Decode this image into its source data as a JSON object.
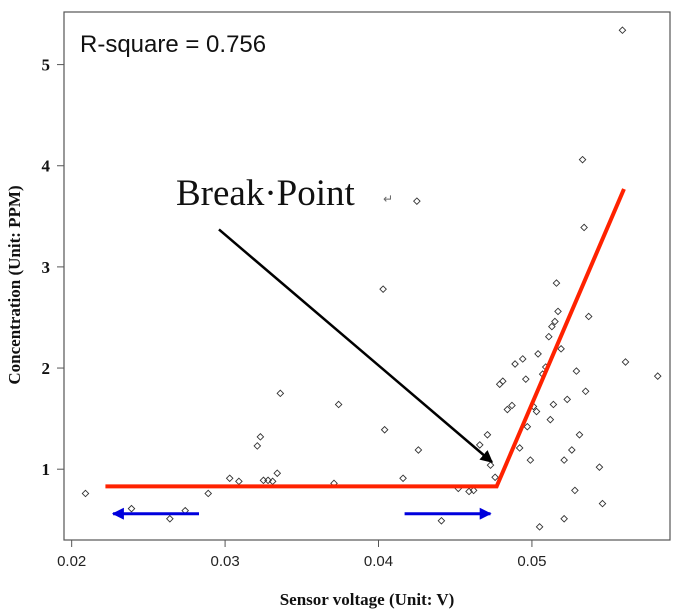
{
  "chart_data": {
    "type": "scatter",
    "title": "",
    "xlabel": "Sensor voltage (Unit: V)",
    "ylabel": "Concentration (Unit: PPM)",
    "xlim": [
      0.0195,
      0.059
    ],
    "ylim": [
      0.3,
      5.52
    ],
    "x_ticks": [
      {
        "value": 0.02,
        "label": "0.02"
      },
      {
        "value": 0.03,
        "label": "0.03"
      },
      {
        "value": 0.04,
        "label": "0.04"
      },
      {
        "value": 0.05,
        "label": "0.05"
      }
    ],
    "y_ticks": [
      {
        "value": 1,
        "label": "1"
      },
      {
        "value": 2,
        "label": "2"
      },
      {
        "value": 3,
        "label": "3"
      },
      {
        "value": 4,
        "label": "4"
      },
      {
        "value": 5,
        "label": "5"
      }
    ],
    "grid": false,
    "points": [
      [
        0.0209,
        0.76
      ],
      [
        0.0239,
        0.61
      ],
      [
        0.0264,
        0.51
      ],
      [
        0.0274,
        0.59
      ],
      [
        0.0289,
        0.76
      ],
      [
        0.0303,
        0.91
      ],
      [
        0.0309,
        0.88
      ],
      [
        0.0321,
        1.23
      ],
      [
        0.0323,
        1.32
      ],
      [
        0.0325,
        0.89
      ],
      [
        0.0328,
        0.89
      ],
      [
        0.0331,
        0.88
      ],
      [
        0.0334,
        0.96
      ],
      [
        0.0336,
        1.75
      ],
      [
        0.0371,
        0.86
      ],
      [
        0.0374,
        1.64
      ],
      [
        0.0403,
        2.78
      ],
      [
        0.0404,
        1.39
      ],
      [
        0.0425,
        3.65
      ],
      [
        0.0426,
        1.19
      ],
      [
        0.0416,
        0.91
      ],
      [
        0.0441,
        0.49
      ],
      [
        0.0452,
        0.81
      ],
      [
        0.0459,
        0.78
      ],
      [
        0.0462,
        0.79
      ],
      [
        0.0466,
        1.24
      ],
      [
        0.0471,
        1.34
      ],
      [
        0.0473,
        1.04
      ],
      [
        0.0476,
        0.92
      ],
      [
        0.0479,
        1.84
      ],
      [
        0.0481,
        1.87
      ],
      [
        0.0484,
        1.59
      ],
      [
        0.0487,
        1.63
      ],
      [
        0.0489,
        2.04
      ],
      [
        0.0492,
        1.21
      ],
      [
        0.0494,
        2.09
      ],
      [
        0.0496,
        1.89
      ],
      [
        0.0497,
        1.42
      ],
      [
        0.0499,
        1.09
      ],
      [
        0.0501,
        1.62
      ],
      [
        0.0503,
        1.57
      ],
      [
        0.0504,
        2.14
      ],
      [
        0.0505,
        0.43
      ],
      [
        0.0507,
        1.94
      ],
      [
        0.0509,
        2.01
      ],
      [
        0.0511,
        2.31
      ],
      [
        0.0512,
        1.49
      ],
      [
        0.0513,
        2.41
      ],
      [
        0.0514,
        1.64
      ],
      [
        0.0515,
        2.46
      ],
      [
        0.0516,
        2.84
      ],
      [
        0.0517,
        2.56
      ],
      [
        0.0519,
        2.19
      ],
      [
        0.0521,
        0.51
      ],
      [
        0.0521,
        1.09
      ],
      [
        0.0523,
        1.69
      ],
      [
        0.0526,
        1.19
      ],
      [
        0.0528,
        0.79
      ],
      [
        0.0529,
        1.97
      ],
      [
        0.0531,
        1.34
      ],
      [
        0.0533,
        4.06
      ],
      [
        0.0534,
        3.39
      ],
      [
        0.0535,
        1.77
      ],
      [
        0.0537,
        2.51
      ],
      [
        0.0544,
        1.02
      ],
      [
        0.0546,
        0.66
      ],
      [
        0.0559,
        5.34
      ],
      [
        0.0561,
        2.06
      ],
      [
        0.0582,
        1.92
      ]
    ],
    "fit_line": [
      [
        0.0222,
        0.83
      ],
      [
        0.0477,
        0.83
      ],
      [
        0.056,
        3.77
      ]
    ],
    "annotations": {
      "r_square": "R-square = 0.756",
      "break_point": "Break·Point",
      "break_point_mark": "↵"
    },
    "arrows": [
      {
        "from": [
          0.0296,
          3.37
        ],
        "to": [
          0.0474,
          1.07
        ],
        "color": "#000000"
      },
      {
        "from": [
          0.0283,
          0.56
        ],
        "to": [
          0.0227,
          0.56
        ],
        "color": "#0000dd"
      },
      {
        "from": [
          0.0417,
          0.56
        ],
        "to": [
          0.0473,
          0.56
        ],
        "color": "#0000dd"
      }
    ],
    "colors": {
      "fit": "#ff2200",
      "points": "#333333",
      "axis": "#555555",
      "blue_arrow": "#0000dd",
      "black_arrow": "#000000"
    }
  }
}
